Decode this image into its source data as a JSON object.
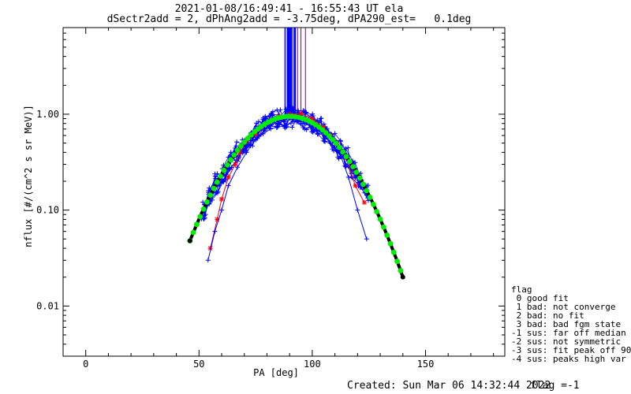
{
  "header": {
    "line1": "2021-01-08/16:49:41 - 16:55:43 UT ela",
    "line2": "dSectr2add = 2, dPhAng2add = -3.75deg, dPA290_est=   0.1deg"
  },
  "footer": {
    "created": "Created: Sun Mar 06 14:32:44 2022",
    "flag": "flag =-1"
  },
  "legend": {
    "title": "flag",
    "items": [
      " 0 good fit",
      " 1 bad: not converge",
      " 2 bad: no fit",
      " 3 bad: bad fgm state",
      "-1 sus: far off median",
      "-2 sus: not symmetric",
      "-3 sus: fit peak off 90",
      "-4 sus: peaks high var"
    ]
  },
  "colors": {
    "red_series": "#ff0000",
    "blue_series": "#0000ff",
    "fit_curve": "#00ee00",
    "median_curve": "#000000"
  },
  "chart_data": {
    "type": "line",
    "xlabel": "PA [deg]",
    "ylabel": "nflux [#/(cm^2 s sr MeV)]",
    "xlim": [
      -10,
      185
    ],
    "ylim": [
      0.003,
      8.0
    ],
    "yscale": "log",
    "xticks": [
      0,
      50,
      100,
      150
    ],
    "xtick_labels": [
      "0",
      "50",
      "100",
      "150"
    ],
    "yticks": [
      0.01,
      0.1,
      1.0
    ],
    "ytick_labels": [
      "0.01",
      "0.10",
      "1.00"
    ],
    "peak_x": 90,
    "peak_y": 0.95,
    "fit_gaussian_sigma": 18.0,
    "fit_x_range": [
      46,
      140
    ],
    "series": [
      {
        "color": "red",
        "x": [
          55,
          58,
          60,
          63,
          66,
          68,
          71,
          75,
          80,
          85,
          90,
          95,
          100,
          105,
          108,
          111,
          115,
          119,
          123
        ],
        "y": [
          0.04,
          0.08,
          0.13,
          0.22,
          0.3,
          0.4,
          0.52,
          0.62,
          0.8,
          0.95,
          1.0,
          1.02,
          0.9,
          0.73,
          0.6,
          0.5,
          0.35,
          0.18,
          0.12
        ]
      },
      {
        "color": "blue",
        "x": [
          54,
          57,
          60,
          63,
          67,
          71,
          75,
          80,
          85,
          90,
          95,
          100,
          104,
          108,
          112,
          116,
          120,
          124
        ],
        "y": [
          0.03,
          0.06,
          0.1,
          0.18,
          0.28,
          0.4,
          0.55,
          0.72,
          0.85,
          0.92,
          0.88,
          0.8,
          0.65,
          0.5,
          0.4,
          0.22,
          0.1,
          0.05
        ]
      }
    ]
  }
}
